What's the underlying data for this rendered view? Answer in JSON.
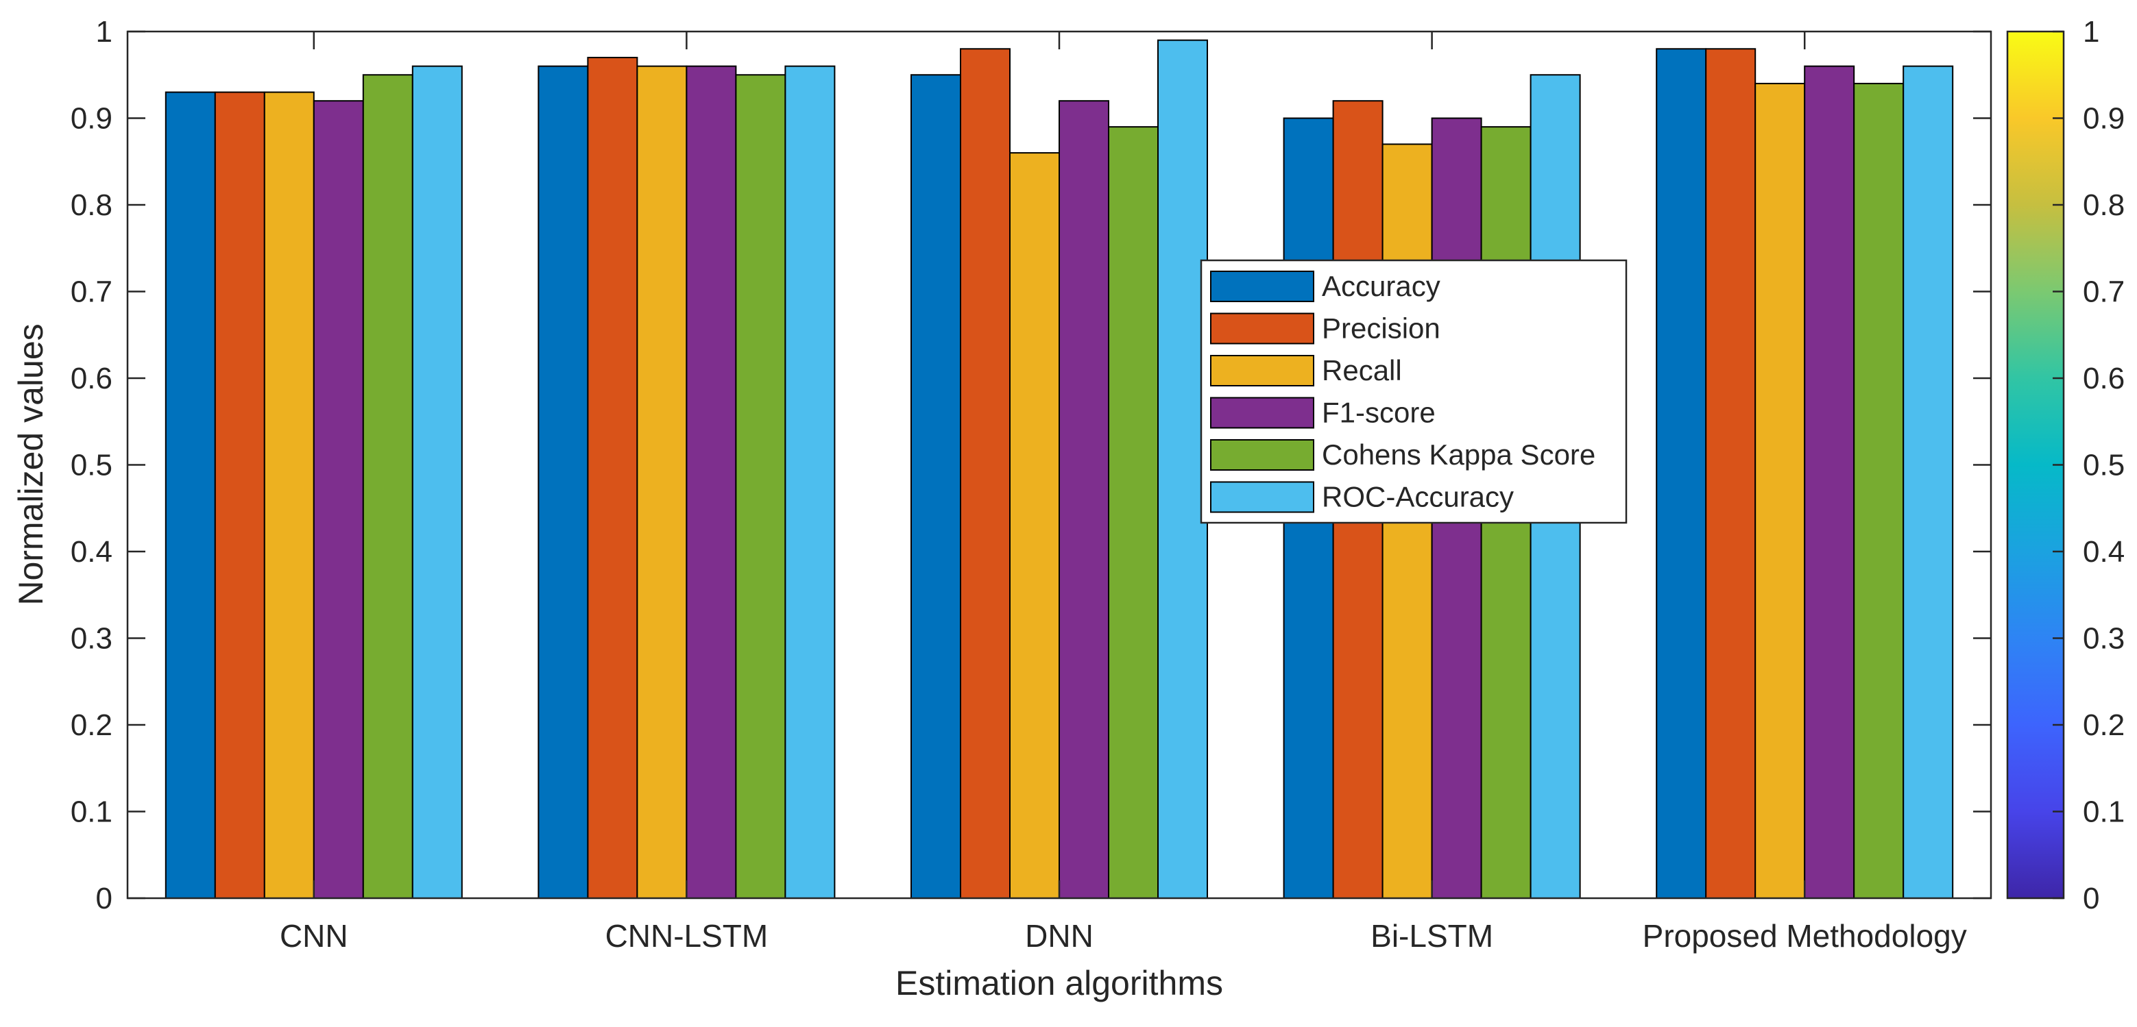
{
  "chart_data": {
    "type": "bar",
    "title": "",
    "xlabel": "Estimation algorithms",
    "ylabel": "Normalized values",
    "ylim": [
      0,
      1
    ],
    "yticks": [
      "0",
      "0.1",
      "0.2",
      "0.3",
      "0.4",
      "0.5",
      "0.6",
      "0.7",
      "0.8",
      "0.9",
      "1"
    ],
    "categories": [
      "CNN",
      "CNN-LSTM",
      "DNN",
      "Bi-LSTM",
      "Proposed Methodology"
    ],
    "series": [
      {
        "name": "Accuracy",
        "color": "#0072BD",
        "values": [
          0.93,
          0.96,
          0.95,
          0.9,
          0.98
        ]
      },
      {
        "name": "Precision",
        "color": "#D95319",
        "values": [
          0.93,
          0.97,
          0.98,
          0.92,
          0.98
        ]
      },
      {
        "name": "Recall",
        "color": "#EDB120",
        "values": [
          0.93,
          0.96,
          0.86,
          0.87,
          0.94
        ]
      },
      {
        "name": "F1-score",
        "color": "#7E2F8E",
        "values": [
          0.92,
          0.96,
          0.92,
          0.9,
          0.96
        ]
      },
      {
        "name": "Cohens Kappa Score",
        "color": "#77AC30",
        "values": [
          0.95,
          0.95,
          0.89,
          0.89,
          0.94
        ]
      },
      {
        "name": "ROC-Accuracy",
        "color": "#4DBEEE",
        "values": [
          0.96,
          0.96,
          0.99,
          0.95,
          0.96
        ]
      }
    ],
    "legend_position": "center",
    "grid": false,
    "colorbar": {
      "range": [
        0,
        1
      ],
      "ticks": [
        "0",
        "0.1",
        "0.2",
        "0.3",
        "0.4",
        "0.5",
        "0.6",
        "0.7",
        "0.8",
        "0.9",
        "1"
      ],
      "colormap": [
        "#3E26A8",
        "#4744E9",
        "#3D64FD",
        "#2E84F4",
        "#1BA2E0",
        "#06B9C8",
        "#31C5A4",
        "#7BC971",
        "#C6BF40",
        "#F9C829",
        "#F9FB15"
      ]
    }
  }
}
